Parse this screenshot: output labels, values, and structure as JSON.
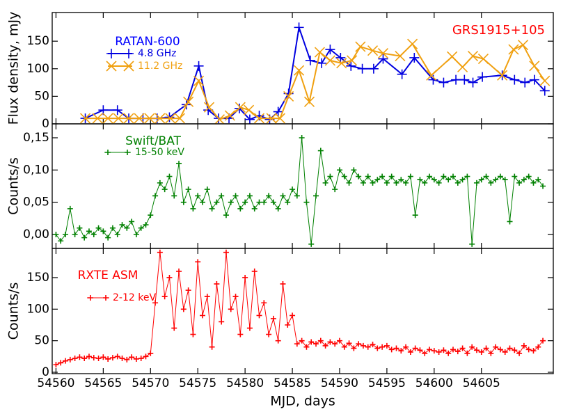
{
  "chart_data": [
    {
      "type": "line",
      "annotation": "GRS1915+105",
      "annotation_color": "#ff0000",
      "legend_title": "RATAN-600",
      "legend_color": "#0000ff",
      "ylabel": "Flux density, mJy",
      "xlim": [
        54559.6,
        54612.6
      ],
      "ylim": [
        0,
        202
      ],
      "yticks": [
        0,
        50,
        100,
        150
      ],
      "series": [
        {
          "name": "4.8 GHz",
          "color": "#0000e0",
          "marker": "plus",
          "x": [
            54563.1,
            54565.0,
            54566.5,
            54567.7,
            54569.2,
            54570.7,
            54572.0,
            54573.8,
            54575.1,
            54576.1,
            54577.2,
            54578.3,
            54579.4,
            54580.5,
            54581.5,
            54582.6,
            54583.5,
            54584.6,
            54585.7,
            54586.9,
            54588.1,
            54589.0,
            54590.1,
            54591.2,
            54592.4,
            54593.6,
            54594.6,
            54596.6,
            54597.9,
            54599.9,
            54601.0,
            54602.3,
            54603.2,
            54604.1,
            54605.1,
            54607.2,
            54608.5,
            54609.6,
            54610.6,
            54611.7
          ],
          "values": [
            10,
            25,
            25,
            10,
            10,
            10,
            12,
            35,
            105,
            25,
            10,
            10,
            28,
            8,
            15,
            8,
            22,
            55,
            175,
            115,
            110,
            135,
            120,
            105,
            100,
            100,
            118,
            90,
            120,
            80,
            75,
            80,
            80,
            75,
            85,
            88,
            80,
            75,
            80,
            60
          ]
        },
        {
          "name": "11.2 GHz",
          "color": "#f0a010",
          "marker": "cross",
          "x": [
            54563.1,
            54564.4,
            54565.5,
            54566.6,
            54567.7,
            54568.8,
            54569.9,
            54571.0,
            54572.1,
            54573.1,
            54574.0,
            54575.1,
            54576.2,
            54577.3,
            54578.4,
            54579.5,
            54580.4,
            54581.5,
            54582.8,
            54583.7,
            54584.6,
            54585.7,
            54586.8,
            54587.9,
            54589.0,
            54590.2,
            54591.3,
            54592.2,
            54593.5,
            54594.6,
            54596.4,
            54597.7,
            54599.7,
            54601.9,
            54603.0,
            54604.1,
            54605.2,
            54607.2,
            54608.4,
            54609.4,
            54610.6,
            54611.7
          ],
          "values": [
            10,
            10,
            10,
            10,
            10,
            10,
            10,
            10,
            10,
            10,
            40,
            78,
            30,
            8,
            15,
            30,
            25,
            10,
            10,
            10,
            50,
            97,
            40,
            130,
            115,
            110,
            115,
            140,
            133,
            128,
            123,
            145,
            88,
            122,
            103,
            123,
            118,
            88,
            135,
            143,
            105,
            78
          ]
        }
      ]
    },
    {
      "type": "line",
      "legend_title": "Swift/BAT",
      "legend_color": "#008000",
      "ylabel": "Counts/s",
      "xlim": [
        54559.6,
        54612.6
      ],
      "ylim": [
        -0.0216,
        0.1716
      ],
      "yticks": [
        {
          "value": 0,
          "label": "0,00"
        },
        {
          "value": 0.05,
          "label": "0,05"
        },
        {
          "value": 0.1,
          "label": "0,10"
        },
        {
          "value": 0.15,
          "label": "0,15"
        }
      ],
      "series": [
        {
          "name": "15-50 keV",
          "color": "#008000",
          "marker": "plus",
          "x": [
            54560,
            54560.5,
            54561,
            54561.5,
            54562,
            54562.5,
            54563,
            54563.5,
            54564,
            54564.5,
            54565,
            54565.5,
            54566,
            54566.5,
            54567,
            54567.5,
            54568,
            54568.5,
            54569,
            54569.5,
            54570,
            54570.5,
            54571,
            54571.5,
            54572,
            54572.5,
            54573,
            54573.5,
            54574,
            54574.5,
            54575,
            54575.5,
            54576,
            54576.5,
            54577,
            54577.5,
            54578,
            54578.5,
            54579,
            54579.5,
            54580,
            54580.5,
            54581,
            54581.5,
            54582,
            54582.5,
            54583,
            54583.5,
            54584,
            54584.5,
            54585,
            54585.5,
            54586,
            54586.5,
            54587,
            54587.5,
            54588,
            54588.5,
            54589,
            54589.5,
            54590,
            54590.5,
            54591,
            54591.5,
            54592,
            54592.5,
            54593,
            54593.5,
            54594,
            54594.5,
            54595,
            54595.5,
            54596,
            54596.5,
            54597,
            54597.5,
            54598,
            54598.5,
            54599,
            54599.5,
            54600,
            54600.5,
            54601,
            54601.5,
            54602,
            54602.5,
            54603,
            54603.5,
            54604,
            54604.5,
            54605,
            54605.5,
            54606,
            54606.5,
            54607,
            54607.5,
            54608,
            54608.5,
            54609,
            54609.5,
            54610,
            54610.5,
            54611,
            54611.5
          ],
          "values": [
            0.0,
            -0.01,
            0.0,
            0.04,
            0.0,
            0.01,
            -0.005,
            0.005,
            0.0,
            0.01,
            0.005,
            -0.005,
            0.01,
            0.0,
            0.015,
            0.01,
            0.02,
            0.0,
            0.01,
            0.015,
            0.03,
            0.06,
            0.08,
            0.07,
            0.09,
            0.06,
            0.11,
            0.05,
            0.07,
            0.04,
            0.06,
            0.05,
            0.07,
            0.04,
            0.05,
            0.06,
            0.03,
            0.05,
            0.06,
            0.04,
            0.05,
            0.06,
            0.04,
            0.05,
            0.05,
            0.06,
            0.05,
            0.04,
            0.06,
            0.05,
            0.07,
            0.06,
            0.15,
            0.05,
            -0.015,
            0.06,
            0.13,
            0.08,
            0.09,
            0.07,
            0.1,
            0.09,
            0.08,
            0.1,
            0.09,
            0.08,
            0.09,
            0.08,
            0.085,
            0.09,
            0.08,
            0.09,
            0.08,
            0.085,
            0.08,
            0.09,
            0.03,
            0.085,
            0.08,
            0.09,
            0.085,
            0.08,
            0.09,
            0.085,
            0.09,
            0.08,
            0.085,
            0.09,
            -0.015,
            0.08,
            0.085,
            0.09,
            0.08,
            0.085,
            0.09,
            0.085,
            0.02,
            0.09,
            0.08,
            0.085,
            0.09,
            0.08,
            0.085,
            0.075
          ]
        }
      ]
    },
    {
      "type": "line",
      "legend_title": "RXTE ASM",
      "legend_color": "#ff0000",
      "ylabel": "Counts/s",
      "xlabel": "MJD, days",
      "xlim": [
        54559.6,
        54612.6
      ],
      "ylim": [
        -2.2,
        196.3
      ],
      "yticks": [
        0,
        50,
        100,
        150
      ],
      "xticks": [
        54560,
        54565,
        54570,
        54575,
        54580,
        54585,
        54590,
        54595,
        54600,
        54605
      ],
      "series": [
        {
          "name": "2-12 keV",
          "color": "#ff0000",
          "marker": "plus",
          "x": [
            54560,
            54560.5,
            54561,
            54561.5,
            54562,
            54562.5,
            54563,
            54563.5,
            54564,
            54564.5,
            54565,
            54565.5,
            54566,
            54566.5,
            54567,
            54567.5,
            54568,
            54568.5,
            54569,
            54569.5,
            54570,
            54570.5,
            54571,
            54571.5,
            54572,
            54572.5,
            54573,
            54573.5,
            54574,
            54574.5,
            54575,
            54575.5,
            54576,
            54576.5,
            54577,
            54577.5,
            54578,
            54578.5,
            54579,
            54579.5,
            54580,
            54580.5,
            54581,
            54581.5,
            54582,
            54582.5,
            54583,
            54583.5,
            54584,
            54584.5,
            54585,
            54585.5,
            54586,
            54586.5,
            54587,
            54587.5,
            54588,
            54588.5,
            54589,
            54589.5,
            54590,
            54590.5,
            54591,
            54591.5,
            54592,
            54592.5,
            54593,
            54593.5,
            54594,
            54594.5,
            54595,
            54595.5,
            54596,
            54596.5,
            54597,
            54597.5,
            54598,
            54598.5,
            54599,
            54599.5,
            54600,
            54600.5,
            54601,
            54601.5,
            54602,
            54602.5,
            54603,
            54603.5,
            54604,
            54604.5,
            54605,
            54605.5,
            54606,
            54606.5,
            54607,
            54607.5,
            54608,
            54608.5,
            54609,
            54609.5,
            54610,
            54610.5,
            54611,
            54611.5
          ],
          "values": [
            12,
            15,
            18,
            20,
            22,
            24,
            22,
            25,
            23,
            22,
            24,
            21,
            23,
            25,
            22,
            20,
            24,
            21,
            22,
            25,
            30,
            110,
            190,
            120,
            150,
            70,
            160,
            100,
            130,
            60,
            175,
            90,
            120,
            40,
            140,
            80,
            190,
            100,
            120,
            60,
            150,
            70,
            160,
            90,
            110,
            60,
            85,
            50,
            140,
            75,
            90,
            45,
            50,
            40,
            48,
            45,
            50,
            42,
            48,
            45,
            50,
            40,
            46,
            38,
            45,
            42,
            40,
            44,
            38,
            40,
            42,
            36,
            38,
            34,
            40,
            32,
            38,
            35,
            30,
            36,
            34,
            32,
            35,
            30,
            36,
            33,
            38,
            30,
            40,
            35,
            32,
            38,
            30,
            40,
            36,
            32,
            38,
            35,
            30,
            42,
            36,
            34,
            40,
            50
          ]
        }
      ]
    }
  ]
}
